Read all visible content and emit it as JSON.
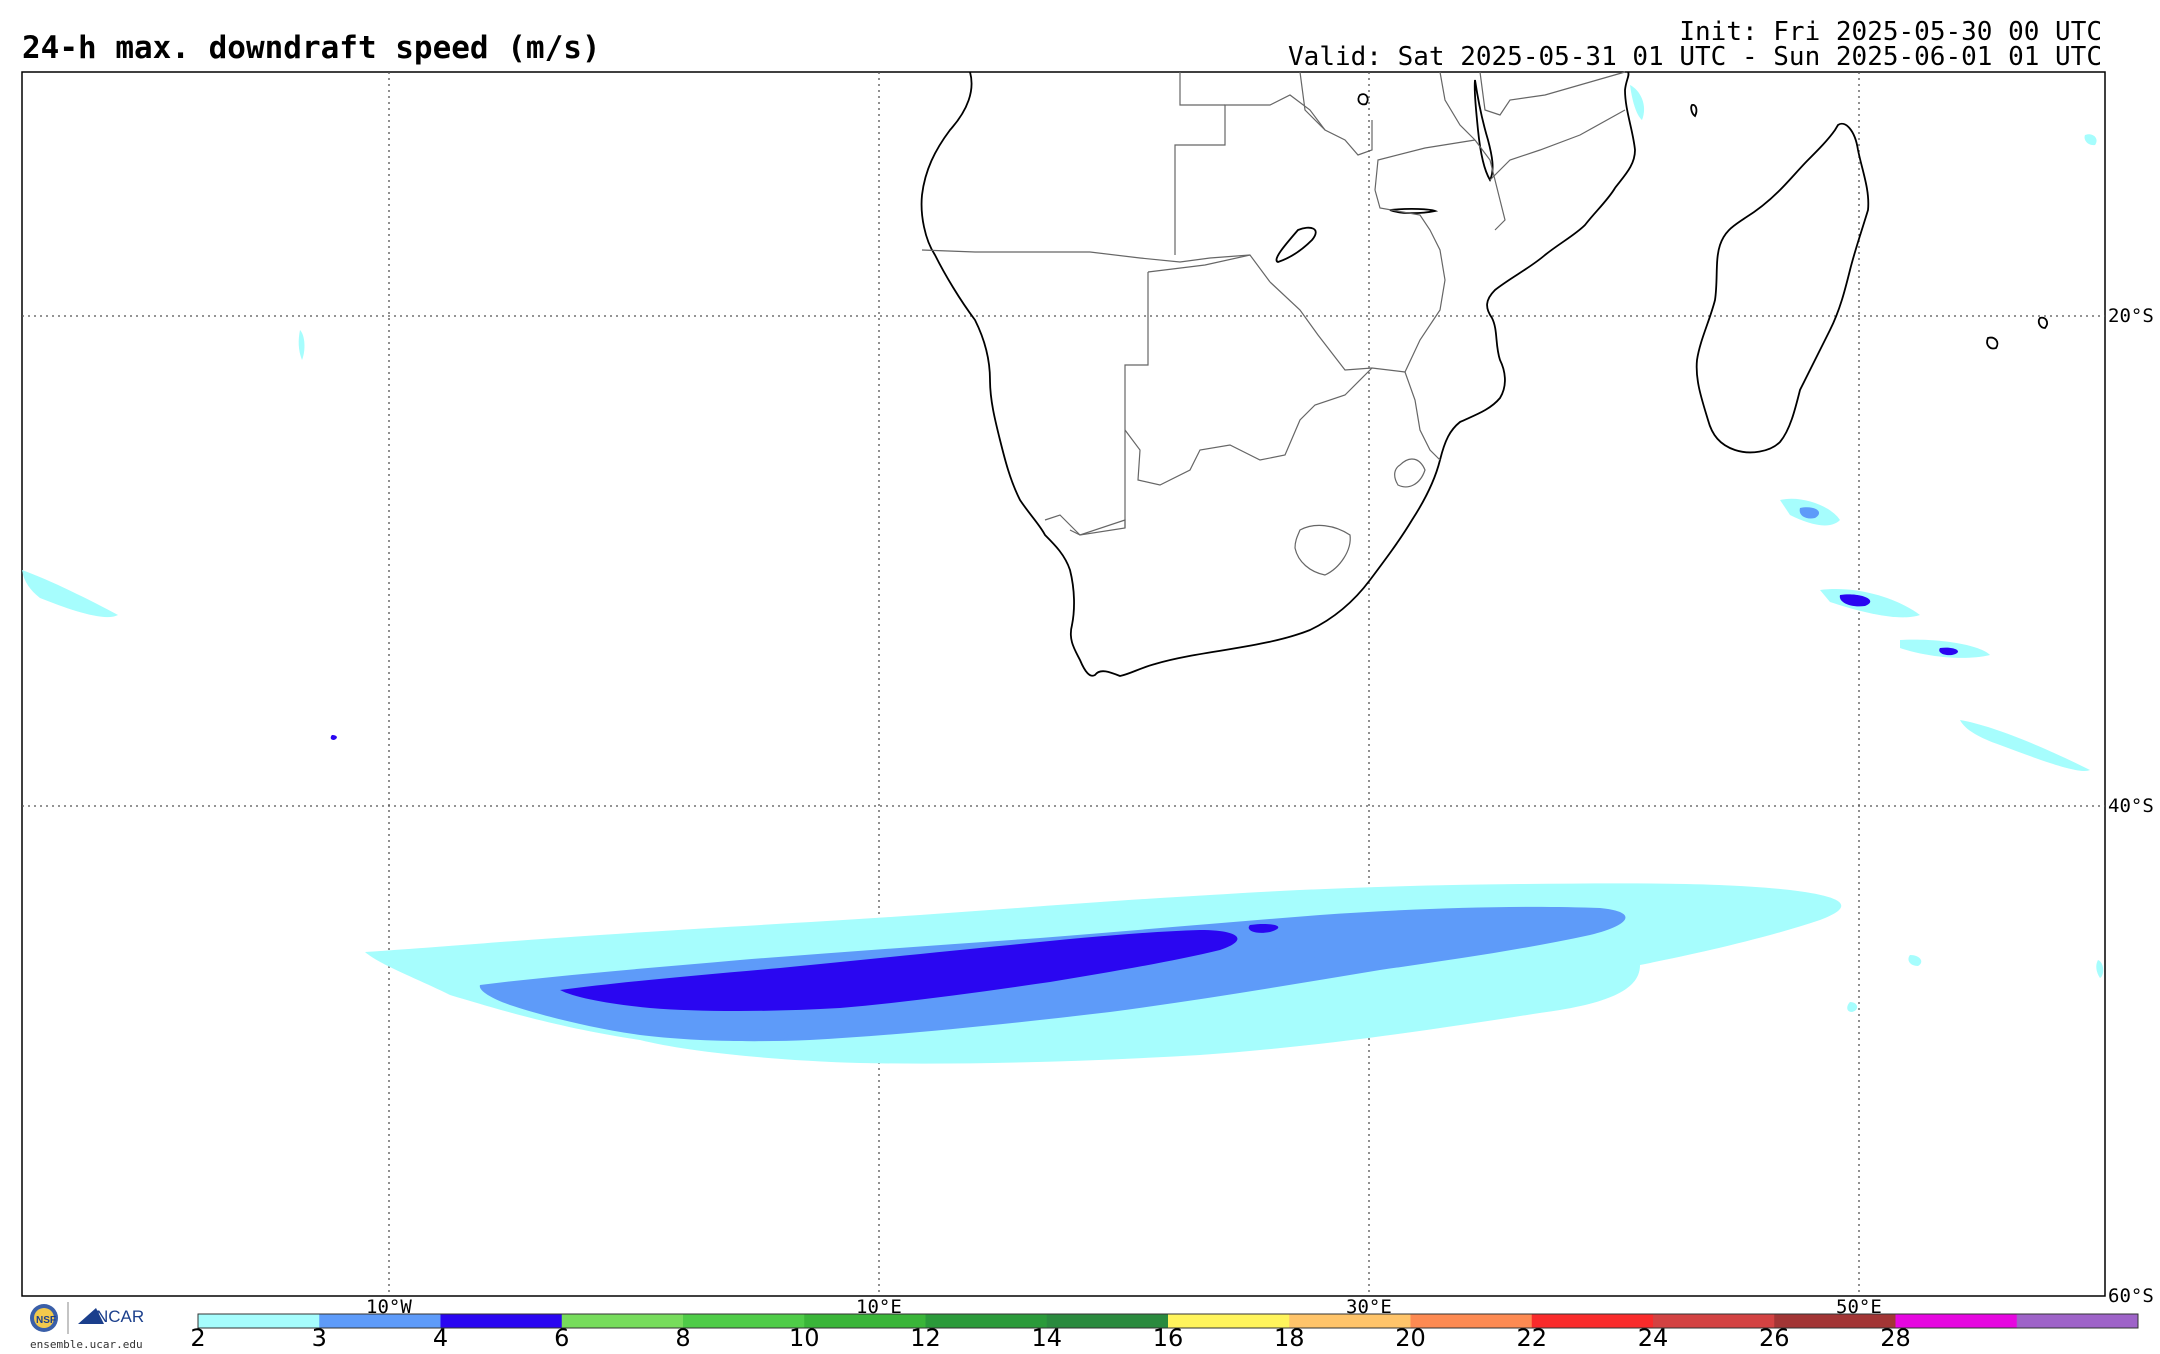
{
  "header": {
    "title": "24-h max. downdraft speed (m/s)",
    "init": "Init: Fri 2025-05-30 00 UTC",
    "valid": "Valid: Sat 2025-05-31 01 UTC - Sun 2025-06-01 01 UTC"
  },
  "map": {
    "lat_labels": [
      "20°S",
      "40°S",
      "60°S"
    ],
    "lon_labels": [
      "10°W",
      "10°E",
      "30°E",
      "50°E"
    ]
  },
  "colorbar": {
    "ticks": [
      "2",
      "3",
      "4",
      "6",
      "8",
      "10",
      "12",
      "14",
      "16",
      "18",
      "20",
      "22",
      "24",
      "26",
      "28"
    ],
    "colors": [
      "#a6fdfd",
      "#5e9bf9",
      "#2a06f1",
      "#77dc5c",
      "#4fcc48",
      "#3ab539",
      "#2b9a3a",
      "#2a8a3e",
      "#fff45c",
      "#ffc46a",
      "#fd8a52",
      "#f92b2b",
      "#d34242",
      "#a23535",
      "#e607e0",
      "#9e63c8"
    ]
  },
  "footer": {
    "logo_ncar": "NCAR",
    "url": "ensemble.ucar.edu"
  },
  "icons": {
    "nsf_logo": "nsf-logo-icon",
    "ncar_logo": "ncar-logo-icon"
  }
}
